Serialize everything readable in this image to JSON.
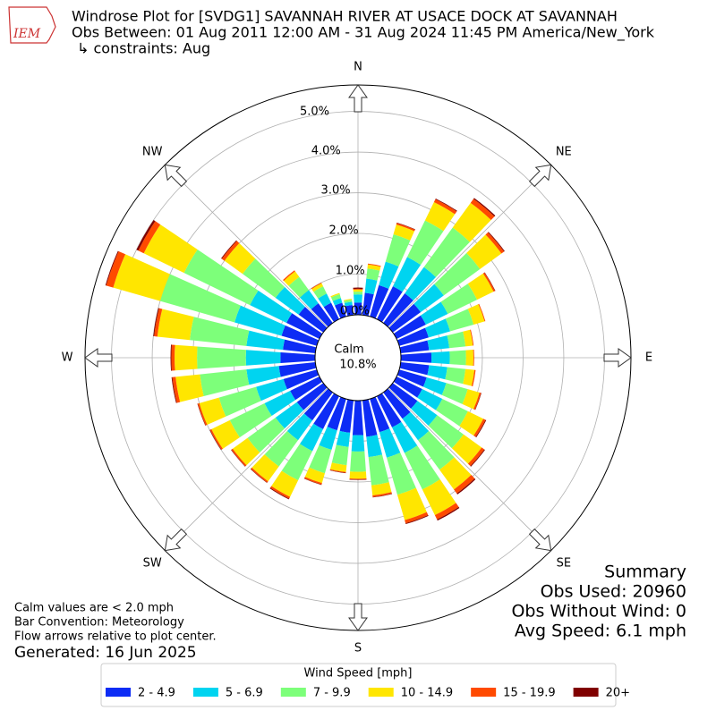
{
  "chart_data": {
    "type": "windrose",
    "title": "Windrose Plot for [SVDG1] SAVANNAH RIVER AT USACE DOCK AT SAVANNAH",
    "subtitle": "Obs Between: 01 Aug 2011 12:00 AM - 31 Aug 2024 11:45 PM America/New_York",
    "constraints": "↳ constraints: Aug",
    "logo_text": "IEM",
    "directions": [
      0,
      10,
      20,
      30,
      40,
      50,
      60,
      70,
      80,
      90,
      100,
      110,
      120,
      130,
      140,
      150,
      160,
      170,
      180,
      190,
      200,
      210,
      220,
      230,
      240,
      250,
      260,
      270,
      280,
      290,
      300,
      310,
      320,
      330,
      340,
      350
    ],
    "angle_ticks": [
      0,
      45,
      90,
      135,
      180,
      225,
      270,
      315
    ],
    "direction_labels": [
      "N",
      "NE",
      "E",
      "SE",
      "S",
      "SW",
      "W",
      "NW"
    ],
    "rlim": [
      0,
      5.65
    ],
    "rticks": [
      {
        "value": 0,
        "label": "0.0%"
      },
      {
        "value": 1,
        "label": "1.0%"
      },
      {
        "value": 2,
        "label": "2.0%"
      },
      {
        "value": 3,
        "label": "3.0%"
      },
      {
        "value": 4,
        "label": "4.0%"
      },
      {
        "value": 5,
        "label": "5.0%"
      }
    ],
    "calm_label": "Calm",
    "calm_value": 10.8,
    "calm_value_label": "10.8%",
    "legend_title": "Wind Speed [mph]",
    "series": [
      {
        "name": "2 - 4.9",
        "color": "#0d2cf5",
        "values": [
          0.3,
          0.55,
          0.8,
          0.9,
          0.9,
          0.85,
          0.8,
          0.75,
          0.7,
          0.75,
          0.7,
          0.7,
          0.7,
          0.75,
          0.8,
          0.85,
          0.85,
          0.9,
          0.85,
          0.8,
          0.8,
          0.9,
          0.85,
          0.8,
          0.8,
          0.85,
          0.9,
          0.85,
          0.8,
          0.9,
          0.9,
          0.75,
          0.6,
          0.45,
          0.35,
          0.25
        ]
      },
      {
        "name": "5 - 6.9",
        "color": "#00d4f0",
        "values": [
          0.2,
          0.35,
          0.6,
          0.8,
          0.8,
          0.7,
          0.6,
          0.55,
          0.5,
          0.45,
          0.45,
          0.5,
          0.55,
          0.6,
          0.65,
          0.7,
          0.65,
          0.5,
          0.4,
          0.35,
          0.5,
          0.6,
          0.6,
          0.65,
          0.7,
          0.7,
          0.8,
          0.85,
          0.9,
          1.2,
          1.0,
          0.7,
          0.4,
          0.25,
          0.12,
          0.08
        ]
      },
      {
        "name": "7 - 9.9",
        "color": "#7dff7a",
        "values": [
          0.07,
          0.25,
          0.7,
          1.0,
          1.2,
          1.1,
          0.8,
          0.6,
          0.4,
          0.4,
          0.45,
          0.55,
          0.7,
          0.8,
          0.9,
          1.0,
          0.95,
          0.7,
          0.5,
          0.45,
          0.6,
          0.8,
          0.8,
          0.85,
          0.95,
          0.95,
          1.15,
          1.2,
          1.4,
          1.9,
          1.8,
          1.0,
          0.4,
          0.2,
          0.1,
          0.05
        ]
      },
      {
        "name": "10 - 14.9",
        "color": "#ffe600",
        "values": [
          0.05,
          0.1,
          0.25,
          0.5,
          0.75,
          0.65,
          0.45,
          0.28,
          0.18,
          0.18,
          0.22,
          0.3,
          0.42,
          0.55,
          0.6,
          0.7,
          0.65,
          0.25,
          0.17,
          0.17,
          0.25,
          0.45,
          0.45,
          0.45,
          0.5,
          0.5,
          0.6,
          0.55,
          0.8,
          1.2,
          1.1,
          0.55,
          0.17,
          0.08,
          0.03,
          0.02
        ]
      },
      {
        "name": "15 - 19.9",
        "color": "#ff4a00",
        "values": [
          0.02,
          0.02,
          0.04,
          0.08,
          0.12,
          0.08,
          0.04,
          0.02,
          0.02,
          0.02,
          0.03,
          0.04,
          0.06,
          0.08,
          0.12,
          0.12,
          0.08,
          0.04,
          0.02,
          0.02,
          0.04,
          0.05,
          0.04,
          0.04,
          0.04,
          0.04,
          0.08,
          0.08,
          0.08,
          0.18,
          0.15,
          0.08,
          0.03,
          0.02,
          0,
          0
        ]
      },
      {
        "name": "20+",
        "color": "#800000",
        "values": [
          0.03,
          0,
          0.01,
          0.02,
          0.03,
          0.02,
          0.01,
          0,
          0,
          0,
          0,
          0.01,
          0.02,
          0.02,
          0.03,
          0.03,
          0.02,
          0.01,
          0.01,
          0.01,
          0.01,
          0.02,
          0.01,
          0.01,
          0.01,
          0.01,
          0.02,
          0.02,
          0.02,
          0.02,
          0.05,
          0.02,
          0,
          0,
          0,
          0
        ]
      }
    ],
    "summary": [
      "Summary",
      "Obs Used: 20960",
      "Obs Without Wind: 0",
      "Avg Speed: 6.1 mph"
    ],
    "notes": [
      "Calm values are < 2.0 mph",
      "Bar Convention: Meteorology",
      "Flow arrows relative to plot center."
    ],
    "generated": "Generated: 16 Jun 2025"
  }
}
